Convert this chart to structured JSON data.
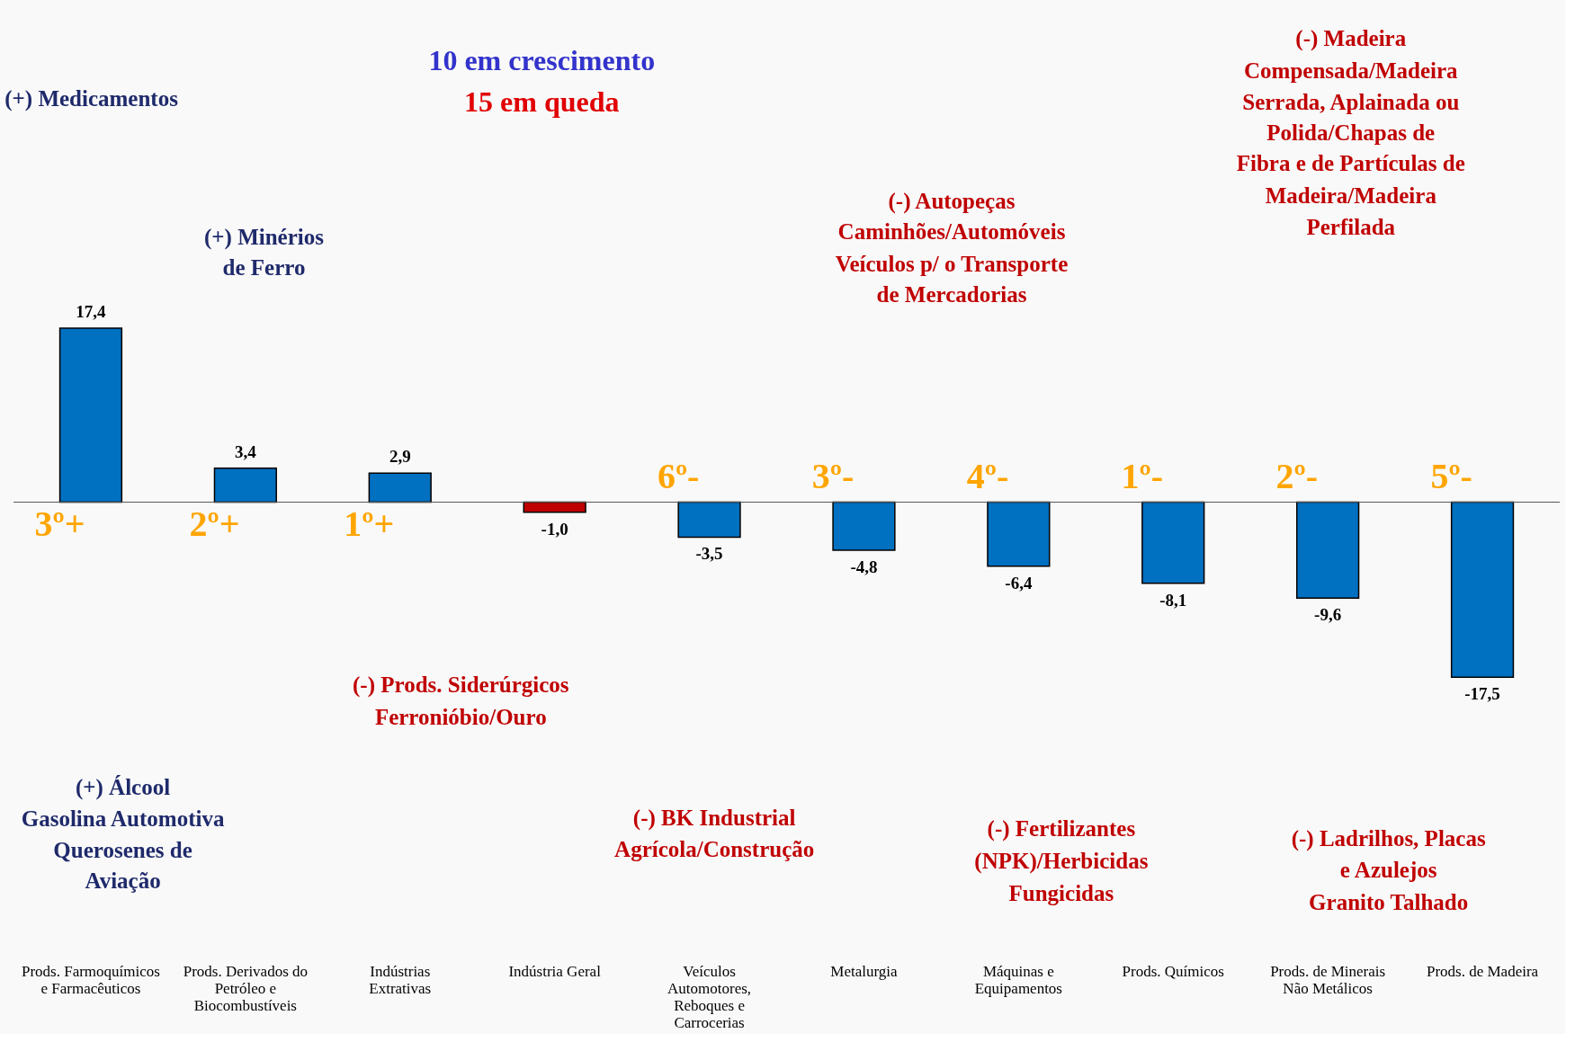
{
  "chart_data": {
    "type": "bar",
    "categories": [
      "Prods. Farmoquímicos e Farmacêuticos",
      "Prods. Derivados do Petróleo e Biocombustíveis",
      "Indústrias Extrativas",
      "Indústria Geral",
      "Veículos Automotores, Reboques e Carrocerias",
      "Metalurgia",
      "Máquinas e Equipamentos",
      "Prods. Químicos",
      "Prods. de Minerais Não Metálicos",
      "Prods. de Madeira"
    ],
    "values": [
      17.4,
      3.4,
      2.9,
      -1.0,
      -3.5,
      -4.8,
      -6.4,
      -8.1,
      -9.6,
      -17.5
    ],
    "colors": [
      "#0070c0",
      "#0070c0",
      "#0070c0",
      "#c00000",
      "#0070c0",
      "#0070c0",
      "#0070c0",
      "#0070c0",
      "#0070c0",
      "#0070c0"
    ],
    "value_labels": [
      "17,4",
      "3,4",
      "2,9",
      "-1,0",
      "-3,5",
      "-4,8",
      "-6,4",
      "-8,1",
      "-9,6",
      "-17,5"
    ],
    "grid": false,
    "annotations": [
      "3º+",
      "2º+",
      "1º+",
      "6º-",
      "3º-",
      "4º-",
      "1º-",
      "2º-",
      "5º-",
      "(+) Medicamentos",
      "10 em crescimento",
      "15 em queda",
      "(+) Minérios",
      "de Ferro",
      "(-) Madeira",
      "Compensada/Madeira",
      "Serrada, Aplainada ou",
      "Polida/Chapas de",
      "Fibra e de Partículas de",
      "Madeira/Madeira",
      "Perfilada",
      "(-) Autopeças",
      "Caminhões/Automóveis",
      "Veículos p/ o Transporte",
      "de Mercadorias",
      "(+) Álcool",
      "Gasolina Automotiva",
      "Querosenes de",
      "Aviação",
      "(-) Prods. Siderúrgicos",
      "Ferronióbio/Ouro",
      "(-) BK Industrial",
      "Agrícola/Construção",
      "(-) Fertilizantes",
      "(NPK)/Herbicidas",
      "Fungicidas",
      "(-) Ladrilhos, Placas",
      "e Azulejos",
      "Granito Talhado"
    ]
  }
}
